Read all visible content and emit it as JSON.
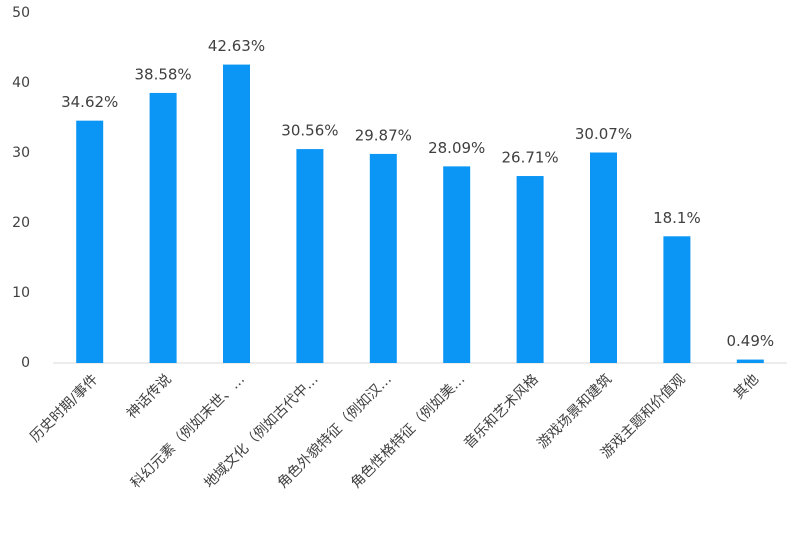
{
  "chart_data": {
    "type": "bar",
    "categories": [
      "历史时期/事件",
      "神话传说",
      "科幻元素（例如末世、…",
      "地域文化（例如古代中…",
      "角色外貌特征（例如汉…",
      "角色性格特征（例如美…",
      "音乐和艺术风格",
      "游戏场景和建筑",
      "游戏主题和价值观",
      "其他"
    ],
    "values": [
      34.62,
      38.58,
      42.63,
      30.56,
      29.87,
      28.09,
      26.71,
      30.07,
      18.1,
      0.49
    ],
    "value_labels": [
      "34.62%",
      "38.58%",
      "42.63%",
      "30.56%",
      "29.87%",
      "28.09%",
      "26.71%",
      "30.07%",
      "18.1%",
      "0.49%"
    ],
    "color": "#0b95f5",
    "ylim": [
      0,
      50
    ],
    "yticks": [
      0,
      10,
      20,
      30,
      40,
      50
    ],
    "grid": false
  }
}
